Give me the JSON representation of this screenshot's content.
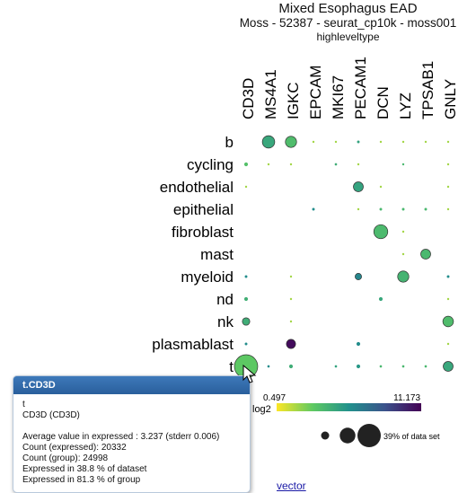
{
  "page": {
    "title": "Mixed Esophagus EAD",
    "subtitle": "Moss - 52387 - seurat_cp10k - moss001",
    "groupby": "highleveltype"
  },
  "chart_data": {
    "type": "dotplot",
    "genes": [
      "CD3D",
      "MS4A1",
      "IGKC",
      "EPCAM",
      "MKI67",
      "PECAM1",
      "DCN",
      "LYZ",
      "TPSAB1",
      "GNLY"
    ],
    "groups": [
      "b",
      "cycling",
      "endothelial",
      "epithelial",
      "fibroblast",
      "mast",
      "myeloid",
      "nd",
      "nk",
      "plasmablast",
      "t"
    ],
    "color_scale": {
      "min": 0.497,
      "max": 11.173,
      "min_label": "0.497",
      "max_label": "11.173",
      "label": "log2"
    },
    "size_legend_label": "39% of data set",
    "size_legend_max_fraction": 0.39,
    "cells": [
      {
        "g": 0,
        "c": 1,
        "f": 0.11,
        "v": 4.8
      },
      {
        "g": 0,
        "c": 2,
        "f": 0.09,
        "v": 3.8
      },
      {
        "g": 0,
        "c": 3,
        "f": 0.002,
        "v": 2.0
      },
      {
        "g": 0,
        "c": 4,
        "f": 0.002,
        "v": 2.0
      },
      {
        "g": 0,
        "c": 5,
        "f": 0.005,
        "v": 5.0
      },
      {
        "g": 0,
        "c": 6,
        "f": 0.002,
        "v": 2.0
      },
      {
        "g": 0,
        "c": 7,
        "f": 0.002,
        "v": 2.0
      },
      {
        "g": 0,
        "c": 8,
        "f": 0.002,
        "v": 2.0
      },
      {
        "g": 0,
        "c": 9,
        "f": 0.002,
        "v": 2.0
      },
      {
        "g": 1,
        "c": 0,
        "f": 0.01,
        "v": 3.6
      },
      {
        "g": 1,
        "c": 1,
        "f": 0.002,
        "v": 2.0
      },
      {
        "g": 1,
        "c": 2,
        "f": 0.002,
        "v": 2.0
      },
      {
        "g": 1,
        "c": 4,
        "f": 0.004,
        "v": 4.5
      },
      {
        "g": 1,
        "c": 5,
        "f": 0.002,
        "v": 2.0
      },
      {
        "g": 1,
        "c": 7,
        "f": 0.003,
        "v": 4.0
      },
      {
        "g": 1,
        "c": 9,
        "f": 0.002,
        "v": 2.0
      },
      {
        "g": 2,
        "c": 0,
        "f": 0.002,
        "v": 2.0
      },
      {
        "g": 2,
        "c": 5,
        "f": 0.07,
        "v": 5.0
      },
      {
        "g": 2,
        "c": 6,
        "f": 0.002,
        "v": 2.0
      },
      {
        "g": 2,
        "c": 9,
        "f": 0.002,
        "v": 2.0
      },
      {
        "g": 3,
        "c": 3,
        "f": 0.005,
        "v": 6.0
      },
      {
        "g": 3,
        "c": 5,
        "f": 0.002,
        "v": 2.0
      },
      {
        "g": 3,
        "c": 6,
        "f": 0.005,
        "v": 4.0
      },
      {
        "g": 3,
        "c": 7,
        "f": 0.005,
        "v": 4.0
      },
      {
        "g": 3,
        "c": 8,
        "f": 0.005,
        "v": 4.0
      },
      {
        "g": 3,
        "c": 9,
        "f": 0.002,
        "v": 2.0
      },
      {
        "g": 4,
        "c": 6,
        "f": 0.14,
        "v": 3.9
      },
      {
        "g": 4,
        "c": 7,
        "f": 0.003,
        "v": 2.0
      },
      {
        "g": 5,
        "c": 7,
        "f": 0.003,
        "v": 2.0
      },
      {
        "g": 5,
        "c": 8,
        "f": 0.07,
        "v": 4.0
      },
      {
        "g": 6,
        "c": 0,
        "f": 0.005,
        "v": 6.0
      },
      {
        "g": 6,
        "c": 2,
        "f": 0.003,
        "v": 2.0
      },
      {
        "g": 6,
        "c": 5,
        "f": 0.03,
        "v": 6.3
      },
      {
        "g": 6,
        "c": 7,
        "f": 0.09,
        "v": 4.2
      },
      {
        "g": 6,
        "c": 9,
        "f": 0.005,
        "v": 6.0
      },
      {
        "g": 7,
        "c": 0,
        "f": 0.01,
        "v": 4.4
      },
      {
        "g": 7,
        "c": 2,
        "f": 0.002,
        "v": 2.0
      },
      {
        "g": 7,
        "c": 6,
        "f": 0.01,
        "v": 4.8
      },
      {
        "g": 7,
        "c": 9,
        "f": 0.002,
        "v": 2.0
      },
      {
        "g": 8,
        "c": 0,
        "f": 0.04,
        "v": 4.5
      },
      {
        "g": 8,
        "c": 2,
        "f": 0.002,
        "v": 2.0
      },
      {
        "g": 8,
        "c": 9,
        "f": 0.08,
        "v": 3.8
      },
      {
        "g": 9,
        "c": 0,
        "f": 0.005,
        "v": 6.0
      },
      {
        "g": 9,
        "c": 2,
        "f": 0.06,
        "v": 10.8
      },
      {
        "g": 9,
        "c": 5,
        "f": 0.01,
        "v": 6.0
      },
      {
        "g": 9,
        "c": 9,
        "f": 0.002,
        "v": 2.0
      },
      {
        "g": 10,
        "c": 0,
        "f": 0.388,
        "v": 3.237
      },
      {
        "g": 10,
        "c": 1,
        "f": 0.004,
        "v": 6.0
      },
      {
        "g": 10,
        "c": 2,
        "f": 0.01,
        "v": 4.5
      },
      {
        "g": 10,
        "c": 4,
        "f": 0.004,
        "v": 5.0
      },
      {
        "g": 10,
        "c": 5,
        "f": 0.01,
        "v": 5.5
      },
      {
        "g": 10,
        "c": 6,
        "f": 0.004,
        "v": 4.0
      },
      {
        "g": 10,
        "c": 7,
        "f": 0.004,
        "v": 4.0
      },
      {
        "g": 10,
        "c": 8,
        "f": 0.004,
        "v": 4.0
      },
      {
        "g": 10,
        "c": 9,
        "f": 0.07,
        "v": 4.8
      }
    ]
  },
  "tooltip": {
    "header": "t.CD3D",
    "group": "t",
    "gene": "CD3D (CD3D)",
    "lines": [
      "Average value in expressed : 3.237 (stderr 0.006)",
      "Count (expressed): 20332",
      "Count (group): 24998",
      "Expressed in 38.8 % of dataset",
      "Expressed in 81.3 % of group"
    ]
  },
  "link": {
    "label": "vector"
  }
}
